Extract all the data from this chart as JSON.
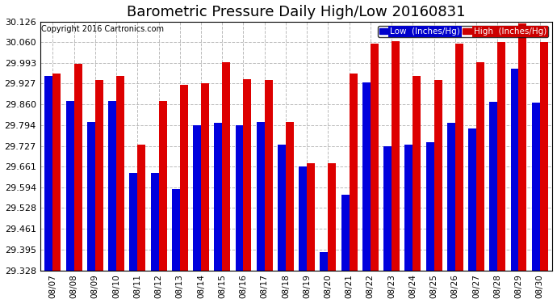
{
  "title": "Barometric Pressure Daily High/Low 20160831",
  "copyright": "Copyright 2016 Cartronics.com",
  "background_color": "#ffffff",
  "plot_bg_color": "#ffffff",
  "grid_color": "#bbbbbb",
  "dates": [
    "08/07",
    "08/08",
    "08/09",
    "08/10",
    "08/11",
    "08/12",
    "08/13",
    "08/14",
    "08/15",
    "08/16",
    "08/17",
    "08/18",
    "08/19",
    "08/20",
    "08/21",
    "08/22",
    "08/23",
    "08/24",
    "08/25",
    "08/26",
    "08/27",
    "08/28",
    "08/29",
    "08/30"
  ],
  "low_values": [
    29.951,
    29.871,
    29.804,
    29.871,
    29.641,
    29.641,
    29.59,
    29.794,
    29.8,
    29.794,
    29.804,
    29.73,
    29.66,
    29.388,
    29.57,
    29.93,
    29.726,
    29.73,
    29.739,
    29.8,
    29.784,
    29.868,
    29.974,
    29.866
  ],
  "high_values": [
    29.96,
    29.991,
    29.938,
    29.951,
    29.73,
    29.871,
    29.924,
    29.927,
    29.994,
    29.94,
    29.938,
    29.804,
    29.671,
    29.671,
    29.96,
    30.055,
    30.062,
    29.951,
    29.938,
    30.055,
    29.994,
    30.06,
    30.12,
    30.06
  ],
  "ylim_min": 29.328,
  "ylim_max": 30.126,
  "yticks": [
    29.328,
    29.395,
    29.461,
    29.528,
    29.594,
    29.661,
    29.727,
    29.794,
    29.86,
    29.927,
    29.993,
    30.06,
    30.126
  ],
  "bar_width": 0.38,
  "low_color": "#0000dd",
  "high_color": "#dd0000",
  "legend_low_label": "Low  (Inches/Hg)",
  "legend_high_label": "High  (Inches/Hg)",
  "legend_low_bg": "#0000cc",
  "legend_high_bg": "#cc0000",
  "title_fontsize": 13,
  "copyright_fontsize": 7,
  "tick_fontsize": 7.5,
  "ytick_fontsize": 8
}
